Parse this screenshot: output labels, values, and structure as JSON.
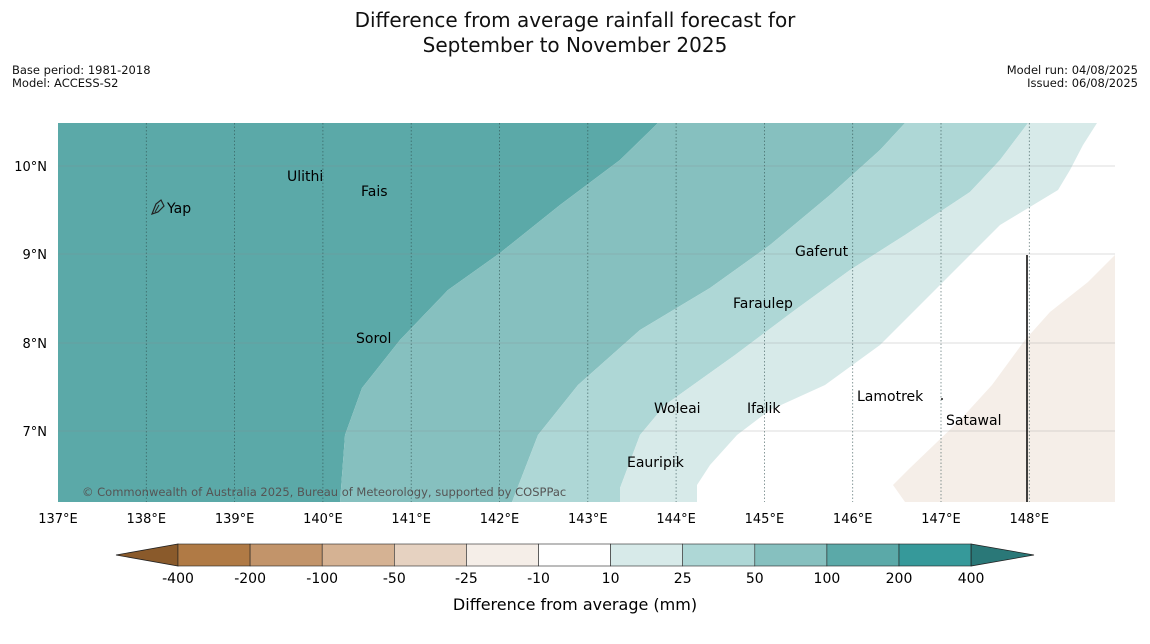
{
  "title": {
    "line1": "Difference from average rainfall forecast for",
    "line2": "September to November 2025"
  },
  "meta_left": {
    "base_period": "Base period: 1981-2018",
    "model": "Model: ACCESS-S2"
  },
  "meta_right": {
    "model_run": "Model run: 04/08/2025",
    "issued": "Issued: 06/08/2025"
  },
  "map": {
    "lon_ticks": [
      "137°E",
      "138°E",
      "139°E",
      "140°E",
      "141°E",
      "142°E",
      "143°E",
      "144°E",
      "145°E",
      "146°E",
      "147°E",
      "148°E"
    ],
    "lat_ticks": [
      "10°N",
      "9°N",
      "8°N",
      "7°N"
    ],
    "places": [
      "Ulithi",
      "Yap",
      "Fais",
      "Gaferut",
      "Faraulep",
      "Sorol",
      "Lamotrek",
      "Woleai",
      "Ifalik",
      "Satawal",
      "Eauripik"
    ],
    "copyright": "© Commonwealth of Australia 2025, Bureau of Meteorology, supported by COSPPac"
  },
  "colorbar": {
    "labels": [
      "-400",
      "-200",
      "-100",
      "-50",
      "-25",
      "-10",
      "10",
      "25",
      "50",
      "100",
      "200",
      "400"
    ],
    "label": "Difference from average (mm)",
    "colors": [
      "#8a5a2b",
      "#b07a45",
      "#c2946a",
      "#d5b293",
      "#e6d2c1",
      "#f5eee8",
      "#ffffff",
      "#d7eae9",
      "#aed7d6",
      "#86c0bf",
      "#5ba9a8",
      "#36999a",
      "#2a7878"
    ]
  }
}
